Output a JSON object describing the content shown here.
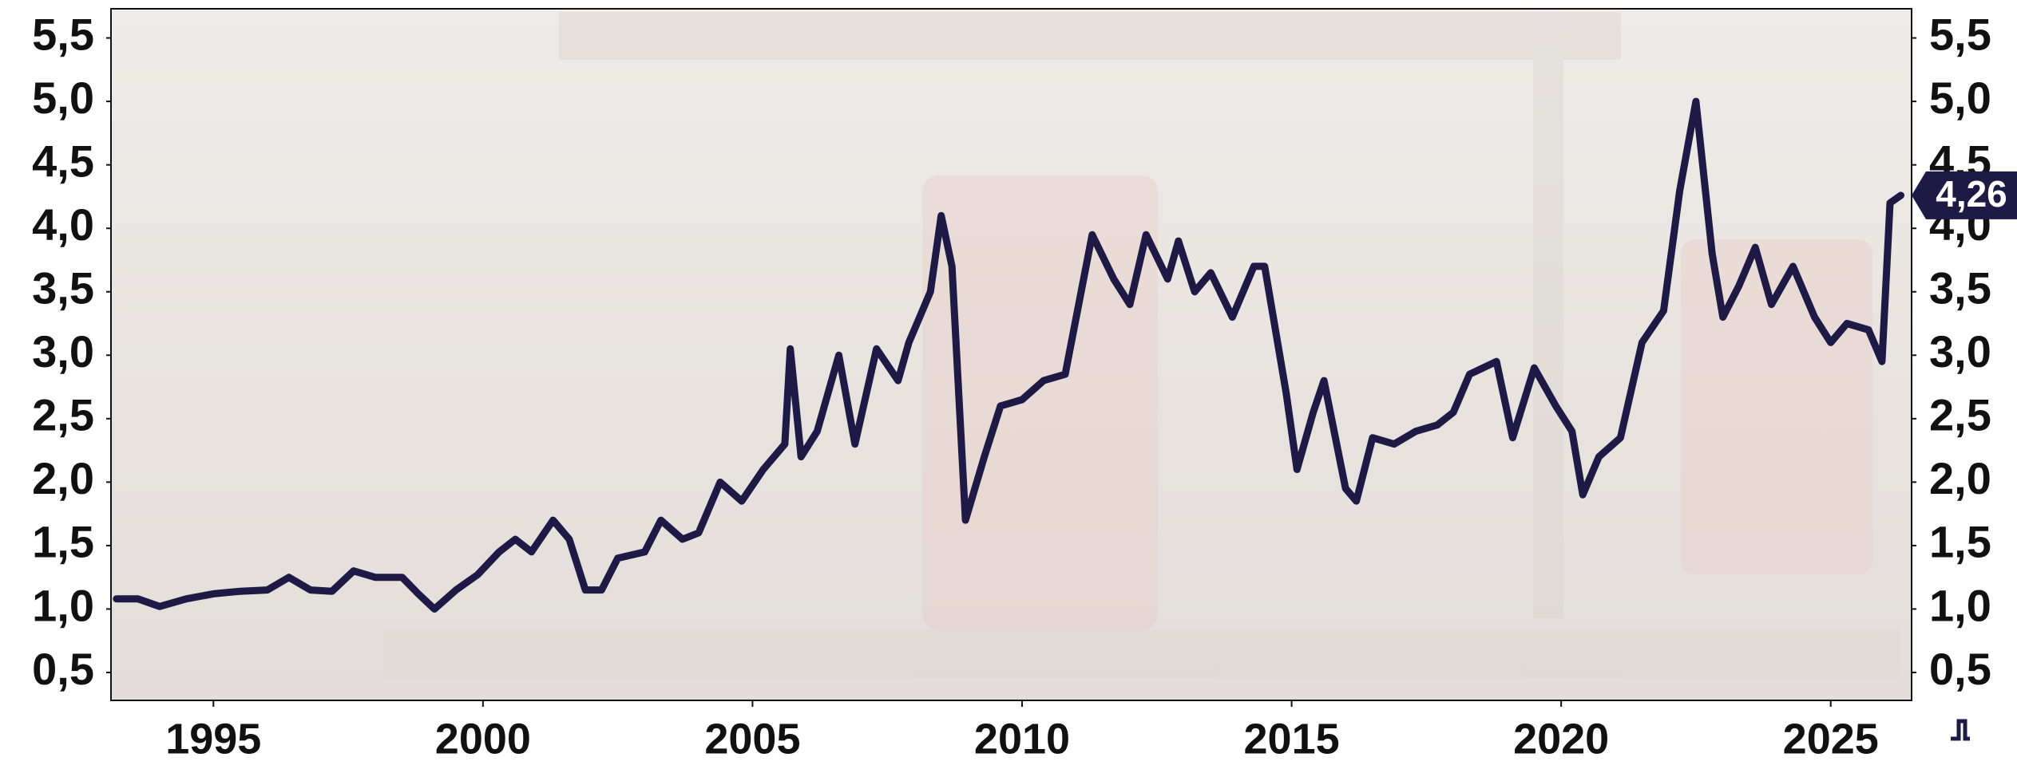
{
  "chart_data": {
    "type": "line",
    "x": [
      1993.2,
      1993.6,
      1994.0,
      1994.5,
      1995.0,
      1995.5,
      1996.0,
      1996.4,
      1996.8,
      1997.2,
      1997.6,
      1998.0,
      1998.5,
      1998.8,
      1999.1,
      1999.5,
      1999.9,
      2000.3,
      2000.6,
      2000.9,
      2001.3,
      2001.6,
      2001.9,
      2002.2,
      2002.5,
      2003.0,
      2003.3,
      2003.7,
      2004.0,
      2004.4,
      2004.8,
      2005.2,
      2005.6,
      2005.7,
      2005.9,
      2006.2,
      2006.6,
      2006.9,
      2007.3,
      2007.7,
      2007.9,
      2008.3,
      2008.5,
      2008.7,
      2008.95,
      2009.3,
      2009.6,
      2010.0,
      2010.4,
      2010.8,
      2011.3,
      2011.7,
      2012.0,
      2012.3,
      2012.7,
      2012.9,
      2013.2,
      2013.5,
      2013.9,
      2014.3,
      2014.5,
      2014.9,
      2015.1,
      2015.4,
      2015.6,
      2016.0,
      2016.2,
      2016.5,
      2016.9,
      2017.3,
      2017.7,
      2018.0,
      2018.3,
      2018.8,
      2019.1,
      2019.5,
      2019.9,
      2020.2,
      2020.4,
      2020.7,
      2021.1,
      2021.5,
      2021.9,
      2022.2,
      2022.5,
      2022.8,
      2023.0,
      2023.3,
      2023.6,
      2023.9,
      2024.3,
      2024.7,
      2025.0,
      2025.3,
      2025.7,
      2025.95,
      2026.1,
      2026.3
    ],
    "series": [
      {
        "color": "#1e1a45",
        "values": [
          1.08,
          1.08,
          1.02,
          1.08,
          1.12,
          1.14,
          1.15,
          1.25,
          1.15,
          1.14,
          1.3,
          1.25,
          1.25,
          1.12,
          1.0,
          1.15,
          1.27,
          1.45,
          1.55,
          1.45,
          1.7,
          1.55,
          1.15,
          1.15,
          1.4,
          1.45,
          1.7,
          1.55,
          1.6,
          2.0,
          1.85,
          2.1,
          2.3,
          3.05,
          2.2,
          2.4,
          3.0,
          2.3,
          3.05,
          2.8,
          3.1,
          3.5,
          4.1,
          3.7,
          1.7,
          2.2,
          2.6,
          2.65,
          2.8,
          2.85,
          3.95,
          3.6,
          3.4,
          3.95,
          3.6,
          3.9,
          3.5,
          3.65,
          3.3,
          3.7,
          3.7,
          2.7,
          2.1,
          2.55,
          2.8,
          1.95,
          1.85,
          2.35,
          2.3,
          2.4,
          2.45,
          2.55,
          2.85,
          2.95,
          2.35,
          2.9,
          2.6,
          2.4,
          1.9,
          2.2,
          2.35,
          3.1,
          3.35,
          4.3,
          5.0,
          3.8,
          3.3,
          3.55,
          3.85,
          3.4,
          3.7,
          3.3,
          3.1,
          3.25,
          3.2,
          2.95,
          4.2,
          4.26
        ],
        "value_labels": [
          null,
          null,
          null,
          null,
          null,
          null,
          null,
          null,
          null,
          null,
          null,
          null,
          null,
          null,
          null,
          null,
          null,
          null,
          null,
          null,
          null,
          null,
          null,
          null,
          null,
          null,
          null,
          null,
          null,
          null,
          null,
          null,
          null,
          null,
          null,
          null,
          null,
          null,
          null,
          null,
          null,
          null,
          null,
          null,
          null,
          null,
          null,
          null,
          null,
          null,
          null,
          null,
          null,
          null,
          null,
          null,
          null,
          null,
          null,
          null,
          null,
          null,
          null,
          null,
          null,
          null,
          null,
          null,
          null,
          null,
          null,
          null,
          null,
          null,
          null,
          null,
          null,
          null,
          null,
          null,
          null,
          null,
          null,
          null,
          null,
          null,
          null,
          null,
          null,
          null,
          null,
          null,
          null,
          null,
          null,
          null,
          null,
          "4,26"
        ]
      }
    ],
    "xlim": [
      1993.1,
      2026.5
    ],
    "xticks": [
      1995,
      2000,
      2005,
      2010,
      2015,
      2020,
      2025
    ],
    "ylim": [
      0.28,
      5.73
    ],
    "yticks": [
      {
        "value": 0.5,
        "label": "0,5"
      },
      {
        "value": 1.0,
        "label": "1,0"
      },
      {
        "value": 1.5,
        "label": "1,5"
      },
      {
        "value": 2.0,
        "label": "2,0"
      },
      {
        "value": 2.5,
        "label": "2,5"
      },
      {
        "value": 3.0,
        "label": "3,0"
      },
      {
        "value": 3.5,
        "label": "3,5"
      },
      {
        "value": 4.0,
        "label": "4,0"
      },
      {
        "value": 4.5,
        "label": "4,5"
      },
      {
        "value": 5.0,
        "label": "5,0"
      },
      {
        "value": 5.5,
        "label": "5,5"
      }
    ]
  }
}
